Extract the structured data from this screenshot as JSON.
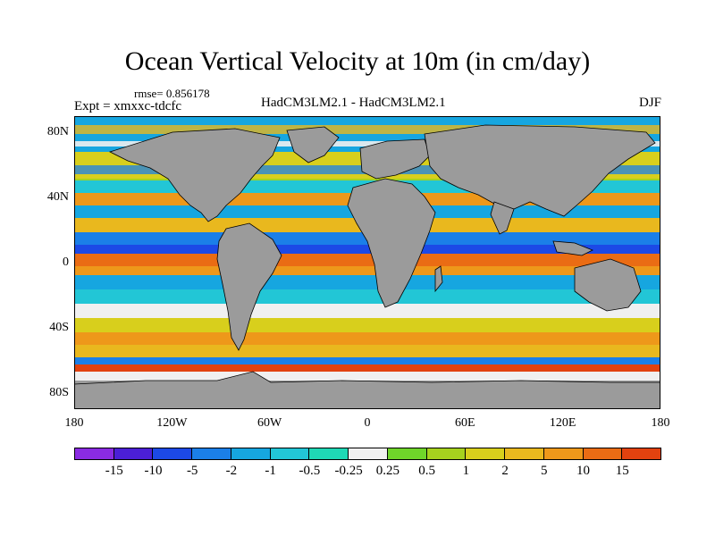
{
  "title": "Ocean Vertical Velocity at 10m (in cm/day)",
  "rmse_label": "rmse= 0.856178",
  "expt_label": "Expt = xmxxc-tdcfc",
  "model_label": "HadCM3LM2.1 - HadCM3LM2.1",
  "season_label": "DJF",
  "map": {
    "projection": "cylindrical equidistant",
    "lon_range": [
      -180,
      180
    ],
    "lat_range": [
      -90,
      90
    ],
    "land_color": "#9b9b9b",
    "y_ticks": [
      {
        "value": 80,
        "label": "80N"
      },
      {
        "value": 40,
        "label": "40N"
      },
      {
        "value": 0,
        "label": "0"
      },
      {
        "value": -40,
        "label": "40S"
      },
      {
        "value": -80,
        "label": "80S"
      }
    ],
    "x_ticks": [
      {
        "value": -180,
        "label": "180"
      },
      {
        "value": -120,
        "label": "120W"
      },
      {
        "value": -60,
        "label": "60W"
      },
      {
        "value": 0,
        "label": "0"
      },
      {
        "value": 60,
        "label": "60E"
      },
      {
        "value": 120,
        "label": "120E"
      },
      {
        "value": 180,
        "label": "180"
      }
    ]
  },
  "colorbar": {
    "colors": [
      "#8a2be2",
      "#4b1fd6",
      "#1c49e6",
      "#1b7fe8",
      "#16a6e0",
      "#22c6d6",
      "#1fd8b5",
      "#f0f0f0",
      "#6fd52a",
      "#a6d21e",
      "#d8cf1c",
      "#e9b81e",
      "#ee981a",
      "#ea6c14",
      "#e2420f"
    ],
    "labels": [
      "-15",
      "-10",
      "-5",
      "-2",
      "-1",
      "-0.5",
      "-0.25",
      "0.25",
      "0.5",
      "1",
      "2",
      "5",
      "10",
      "15"
    ]
  }
}
